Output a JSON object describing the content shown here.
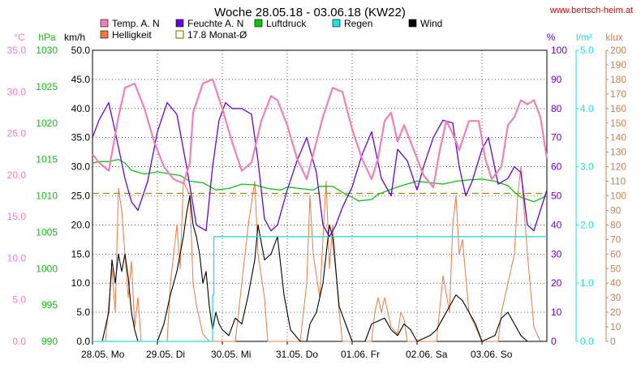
{
  "title": "Woche 28.05.18 - 03.06.18 (KW22)",
  "source": "www.bertsch-heim.at",
  "chart_data": {
    "type": "line",
    "x_ticks": [
      "28.05. Mo",
      "29.05. Di",
      "30.05. Mi",
      "31.05. Do",
      "01.06. Fr",
      "02.06. Sa",
      "03.06. So"
    ],
    "x_range_days": [
      0,
      7
    ],
    "legend": [
      {
        "key": "temp",
        "label": "Temp. A. N",
        "color": "#f080b8",
        "style": "box"
      },
      {
        "key": "feuchte",
        "label": "Feuchte A. N",
        "color": "#6a00e0",
        "style": "box"
      },
      {
        "key": "luftdruck",
        "label": "Luftdruck",
        "color": "#10c010",
        "style": "box"
      },
      {
        "key": "regen",
        "label": "Regen",
        "color": "#20e0e0",
        "style": "box"
      },
      {
        "key": "wind",
        "label": "Wind",
        "color": "#000000",
        "style": "box"
      },
      {
        "key": "hell",
        "label": "Helligkeit",
        "color": "#f07840",
        "style": "box"
      },
      {
        "key": "monat",
        "label": "17.8 Monat-Ø",
        "color": "#a08000",
        "style": "outline"
      }
    ],
    "axes": {
      "temp": {
        "unit": "°C",
        "min": 0,
        "max": 35,
        "ticks": [
          "0.0",
          "5.0",
          "10.0",
          "15.0",
          "20.0",
          "25.0",
          "30.0",
          "35.0"
        ],
        "color": "#f080b8",
        "side": "left"
      },
      "luftdruck": {
        "unit": "hPa",
        "min": 990,
        "max": 1030,
        "ticks": [
          "990",
          "995",
          "1000",
          "1005",
          "1010",
          "1015",
          "1020",
          "1025",
          "1030"
        ],
        "color": "#10c010",
        "side": "left"
      },
      "wind": {
        "unit": "km/h",
        "min": 0,
        "max": 50,
        "ticks": [
          "0.0",
          "5.0",
          "10.0",
          "15.0",
          "20.0",
          "25.0",
          "30.0",
          "35.0",
          "40.0",
          "45.0",
          "50.0"
        ],
        "color": "#000000",
        "side": "left"
      },
      "feuchte": {
        "unit": "%",
        "min": 0,
        "max": 100,
        "ticks": [
          "0",
          "10",
          "20",
          "30",
          "40",
          "50",
          "60",
          "70",
          "80",
          "90",
          "100"
        ],
        "color": "#6a00e0",
        "side": "right"
      },
      "regen": {
        "unit": "l/m²",
        "min": 0,
        "max": 5,
        "ticks": [
          "0.0",
          "1.0",
          "2.0",
          "3.0",
          "4.0",
          "5.0"
        ],
        "color": "#20e0e0",
        "side": "right"
      },
      "hell": {
        "unit": "klux",
        "min": 0,
        "max": 200,
        "ticks": [
          "0",
          "10",
          "20",
          "30",
          "40",
          "50",
          "60",
          "70",
          "80",
          "90",
          "100",
          "110",
          "120",
          "130",
          "140",
          "150",
          "160",
          "170",
          "180",
          "190",
          "200"
        ],
        "color": "#d08050",
        "side": "right"
      }
    },
    "series": [
      {
        "key": "temp",
        "axis": "temp",
        "color": "#f080b8",
        "width": 2.2,
        "x": [
          0.0,
          0.1,
          0.25,
          0.4,
          0.5,
          0.65,
          0.8,
          0.95,
          1.1,
          1.25,
          1.4,
          1.5,
          1.55,
          1.7,
          1.85,
          2.0,
          2.15,
          2.3,
          2.45,
          2.6,
          2.75,
          2.85,
          3.0,
          3.15,
          3.3,
          3.4,
          3.55,
          3.7,
          3.85,
          4.0,
          4.15,
          4.3,
          4.4,
          4.5,
          4.6,
          4.7,
          4.8,
          4.95,
          5.1,
          5.25,
          5.35,
          5.45,
          5.55,
          5.65,
          5.8,
          5.95,
          6.05,
          6.15,
          6.3,
          6.4,
          6.5,
          6.6,
          6.7,
          6.8,
          6.9,
          7.0
        ],
        "y": [
          22.5,
          21.5,
          20.5,
          27.0,
          30.5,
          31.0,
          28.0,
          24.0,
          21.0,
          19.5,
          19.0,
          21.5,
          27.5,
          31.0,
          31.5,
          28.0,
          24.0,
          20.5,
          21.5,
          26.5,
          29.5,
          29.0,
          26.0,
          22.0,
          19.5,
          22.5,
          27.0,
          30.5,
          30.0,
          25.5,
          22.0,
          19.5,
          22.0,
          26.5,
          27.5,
          24.0,
          26.0,
          23.0,
          20.0,
          18.5,
          23.0,
          26.5,
          25.0,
          23.0,
          26.5,
          26.5,
          22.0,
          19.5,
          21.0,
          26.0,
          27.0,
          29.0,
          28.5,
          29.0,
          27.0,
          22.0
        ]
      },
      {
        "key": "feuchte",
        "axis": "feuchte",
        "color": "#6a00e0",
        "width": 1.3,
        "x": [
          0.0,
          0.1,
          0.25,
          0.35,
          0.5,
          0.6,
          0.7,
          0.85,
          1.0,
          1.15,
          1.3,
          1.45,
          1.6,
          1.75,
          1.85,
          1.95,
          2.05,
          2.15,
          2.3,
          2.45,
          2.55,
          2.65,
          2.75,
          2.85,
          3.0,
          3.15,
          3.3,
          3.45,
          3.55,
          3.65,
          3.75,
          3.85,
          4.0,
          4.15,
          4.3,
          4.45,
          4.6,
          4.7,
          4.85,
          5.0,
          5.1,
          5.25,
          5.4,
          5.55,
          5.65,
          5.75,
          5.85,
          6.0,
          6.1,
          6.25,
          6.4,
          6.5,
          6.6,
          6.7,
          6.8,
          6.9,
          7.0
        ],
        "y": [
          70,
          76,
          82,
          72,
          56,
          48,
          45,
          55,
          72,
          82,
          78,
          60,
          40,
          38,
          60,
          76,
          82,
          80,
          80,
          78,
          62,
          42,
          38,
          40,
          52,
          62,
          70,
          58,
          40,
          36,
          40,
          46,
          53,
          64,
          72,
          56,
          50,
          66,
          62,
          52,
          60,
          70,
          76,
          75,
          60,
          50,
          55,
          66,
          70,
          54,
          56,
          60,
          58,
          40,
          38,
          45,
          52
        ]
      },
      {
        "key": "luftdruck",
        "axis": "luftdruck",
        "color": "#10c010",
        "width": 1.3,
        "x": [
          0.0,
          0.1,
          0.25,
          0.4,
          0.5,
          0.6,
          0.8,
          1.0,
          1.2,
          1.35,
          1.5,
          1.7,
          1.9,
          2.1,
          2.3,
          2.5,
          2.7,
          2.9,
          3.0,
          3.2,
          3.4,
          3.5,
          3.7,
          3.9,
          4.0,
          4.1,
          4.3,
          4.4,
          4.6,
          4.8,
          5.0,
          5.2,
          5.4,
          5.6,
          5.8,
          6.0,
          6.2,
          6.4,
          6.5,
          6.6,
          6.8,
          7.0
        ],
        "y": [
          1014.5,
          1014.7,
          1014.7,
          1015.0,
          1014.5,
          1013.5,
          1013.0,
          1013.3,
          1013.0,
          1012.8,
          1012.0,
          1011.8,
          1010.8,
          1011.0,
          1011.6,
          1011.5,
          1011.0,
          1010.8,
          1011.2,
          1011.0,
          1010.8,
          1011.3,
          1011.3,
          1010.2,
          1009.8,
          1009.3,
          1009.5,
          1010.2,
          1010.9,
          1011.5,
          1012.0,
          1011.8,
          1011.6,
          1012.0,
          1012.2,
          1012.3,
          1012.0,
          1011.4,
          1010.5,
          1009.8,
          1009.2,
          1010.0
        ]
      },
      {
        "key": "regen",
        "axis": "regen",
        "color": "#20e0e0",
        "width": 1.3,
        "x": [
          0.0,
          1.85,
          1.85,
          1.87,
          1.87,
          7.0
        ],
        "y": [
          0,
          0,
          0.8,
          0.8,
          1.8,
          1.8
        ]
      },
      {
        "key": "wind",
        "axis": "wind",
        "color": "#000000",
        "width": 1.1,
        "x": [
          0.0,
          0.15,
          0.25,
          0.3,
          0.35,
          0.4,
          0.45,
          0.5,
          0.55,
          0.6,
          0.65,
          0.7,
          0.8,
          1.0,
          1.1,
          1.2,
          1.3,
          1.4,
          1.45,
          1.5,
          1.55,
          1.6,
          1.65,
          1.7,
          1.75,
          1.8,
          1.85,
          1.9,
          1.95,
          2.0,
          2.1,
          2.2,
          2.3,
          2.4,
          2.5,
          2.55,
          2.65,
          2.75,
          2.85,
          2.95,
          3.05,
          3.2,
          3.3,
          3.35,
          3.45,
          3.55,
          3.6,
          3.65,
          3.7,
          3.75,
          3.8,
          3.9,
          4.0,
          4.2,
          4.3,
          4.5,
          4.6,
          4.7,
          4.8,
          4.9,
          5.0,
          5.2,
          5.3,
          5.4,
          5.5,
          5.6,
          5.7,
          5.8,
          5.9,
          6.0,
          6.2,
          6.3,
          6.4,
          6.5,
          6.6,
          6.7,
          7.0
        ],
        "y": [
          0,
          0,
          5,
          14,
          10,
          15,
          12,
          15,
          11,
          5,
          2,
          0,
          0,
          0,
          3,
          8,
          12,
          18,
          22,
          25,
          20,
          18,
          15,
          10,
          12,
          6,
          2,
          5,
          3,
          2,
          1,
          4,
          3,
          8,
          14,
          20,
          14,
          15,
          18,
          8,
          2,
          0,
          0,
          3,
          5,
          10,
          15,
          20,
          18,
          12,
          6,
          3,
          0,
          0,
          3,
          4,
          2,
          1,
          3,
          2,
          0,
          1,
          2,
          4,
          6,
          8,
          7,
          5,
          3,
          0,
          1,
          4,
          5,
          3,
          1,
          0,
          0
        ]
      },
      {
        "key": "hell",
        "axis": "hell",
        "color": "#f07840",
        "width": 1.0,
        "x": [
          0.0,
          0.2,
          0.3,
          0.35,
          0.4,
          0.45,
          0.5,
          0.55,
          0.6,
          0.65,
          0.7,
          0.75,
          0.8,
          0.85,
          1.0,
          1.15,
          1.2,
          1.3,
          1.35,
          1.4,
          1.5,
          1.55,
          1.6,
          1.7,
          1.8,
          1.85,
          1.9,
          2.0,
          2.2,
          2.3,
          2.4,
          2.5,
          2.55,
          2.65,
          2.7,
          2.8,
          2.85,
          3.0,
          3.2,
          3.3,
          3.35,
          3.4,
          3.5,
          3.6,
          3.65,
          3.7,
          3.8,
          3.85,
          4.0,
          4.3,
          4.35,
          4.4,
          4.45,
          4.5,
          4.6,
          4.7,
          4.75,
          4.8,
          4.85,
          5.0,
          5.3,
          5.4,
          5.5,
          5.55,
          5.6,
          5.65,
          5.7,
          5.8,
          5.9,
          6.0,
          6.25,
          6.3,
          6.4,
          6.5,
          6.55,
          6.6,
          6.7,
          6.8,
          6.9,
          7.0
        ],
        "y": [
          0,
          0,
          50,
          20,
          105,
          90,
          60,
          30,
          55,
          10,
          30,
          0,
          0,
          0,
          0,
          0,
          40,
          80,
          50,
          110,
          100,
          40,
          25,
          5,
          0,
          0,
          0,
          0,
          0,
          40,
          80,
          110,
          60,
          30,
          0,
          0,
          0,
          0,
          0,
          40,
          100,
          60,
          30,
          110,
          50,
          80,
          20,
          0,
          0,
          0,
          20,
          30,
          20,
          30,
          10,
          5,
          20,
          15,
          0,
          0,
          0,
          45,
          20,
          80,
          100,
          60,
          70,
          20,
          10,
          0,
          0,
          20,
          40,
          60,
          100,
          120,
          60,
          10,
          0,
          0
        ]
      }
    ],
    "reference_line": {
      "key": "monat",
      "axis": "temp",
      "value": 17.8,
      "color": "#a08000",
      "style": "dashed"
    },
    "grid": true
  }
}
